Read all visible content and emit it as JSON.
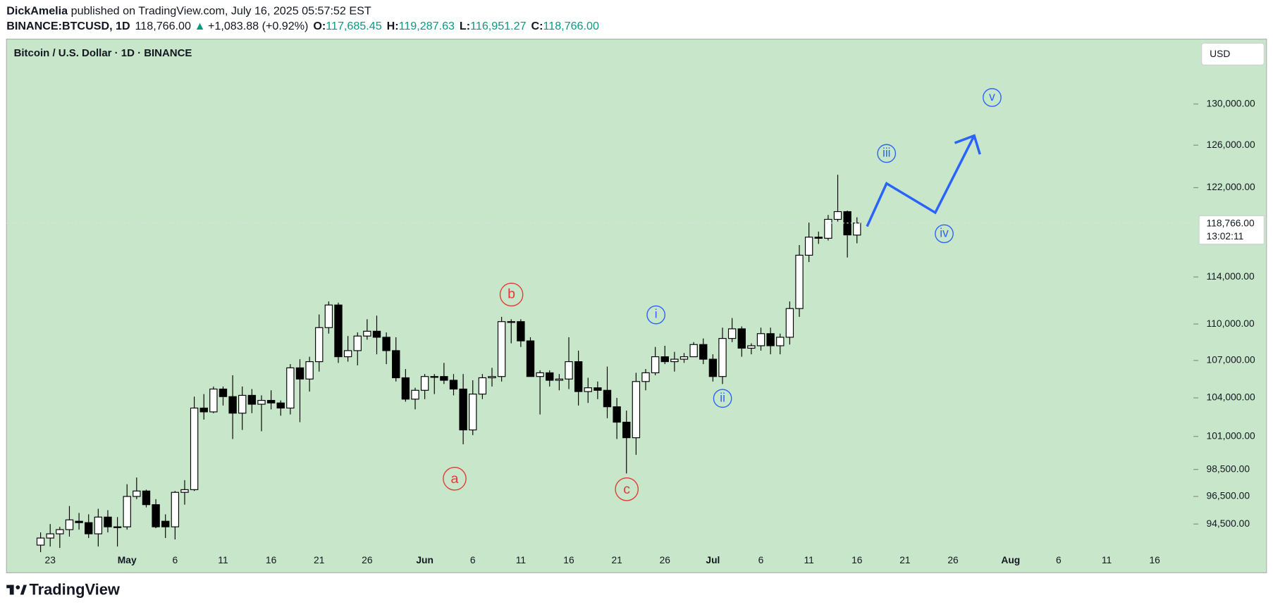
{
  "header": {
    "author": "DickAmelia",
    "published": "published on TradingView.com, July 16, 2025 05:57:52 EST",
    "symbol": "BINANCE:BTCUSD, 1D",
    "price": "118,766.00",
    "arrow": "▲",
    "change": "+1,083.88 (+0.92%)",
    "ohlc": [
      {
        "key": "O:",
        "value": "117,685.45"
      },
      {
        "key": "H:",
        "value": "119,287.63"
      },
      {
        "key": "L:",
        "value": "116,951.27"
      },
      {
        "key": "C:",
        "value": "118,766.00"
      }
    ]
  },
  "footer": {
    "brand": "TradingView"
  },
  "chart_data": {
    "type": "candlestick",
    "title": "Bitcoin / U.S. Dollar · 1D · BINANCE",
    "currency": "USD",
    "last_price_label": "118,766.00",
    "countdown": "13:02:11",
    "log": true,
    "up_color": "#ffffff",
    "down_color": "#000000",
    "wick_color": "#000000",
    "categories": [
      null,
      "23",
      null,
      null,
      null,
      null,
      null,
      null,
      null,
      "May",
      null,
      null,
      null,
      null,
      "6",
      null,
      null,
      null,
      null,
      "11",
      null,
      null,
      null,
      null,
      "16",
      null,
      null,
      null,
      null,
      "21",
      null,
      null,
      null,
      null,
      "26",
      null,
      null,
      null,
      null,
      null,
      "Jun",
      null,
      null,
      null,
      null,
      "6",
      null,
      null,
      null,
      null,
      "11",
      null,
      null,
      null,
      null,
      "16",
      null,
      null,
      null,
      null,
      "21",
      null,
      null,
      null,
      null,
      "26",
      null,
      null,
      null,
      null,
      "Jul",
      null,
      null,
      null,
      null,
      "6",
      null,
      null,
      null,
      null,
      "11",
      null,
      null,
      null,
      null,
      "16",
      null,
      null,
      null,
      null,
      "21",
      null,
      null,
      null,
      null,
      "26",
      null,
      null,
      null,
      null,
      null,
      "Aug",
      null,
      null,
      null,
      null,
      "6",
      null,
      null,
      null,
      null,
      "11",
      null,
      null,
      null,
      null,
      "16"
    ],
    "open": [
      93000,
      93500,
      93800,
      94100,
      94700,
      94600,
      93800,
      95000,
      94300,
      94300,
      96500,
      96900,
      95900,
      94700,
      94300,
      96800,
      97000,
      103200,
      102900,
      104700,
      104100,
      102800,
      104200,
      103500,
      103800,
      103600,
      103200,
      106400,
      105500,
      106900,
      109700,
      111600,
      107300,
      107800,
      109000,
      109400,
      108900,
      107800,
      105600,
      103900,
      104600,
      105700,
      105700,
      105400,
      104700,
      101500,
      104300,
      105600,
      105700,
      110200,
      110200,
      108600,
      105700,
      106000,
      105400,
      105500,
      106900,
      104500,
      104800,
      104600,
      103300,
      102100,
      100900,
      105300,
      106000,
      107300,
      106900,
      107100,
      107300,
      108300,
      107100,
      105700,
      108800,
      109600,
      108000,
      108200,
      109200,
      108200,
      108900,
      111300,
      115900,
      117500,
      117400,
      119100,
      119800,
      117685.45,
      null,
      null,
      null,
      null,
      null,
      null,
      null,
      null,
      null,
      null,
      null,
      null,
      null,
      null,
      null,
      null,
      null,
      null,
      null,
      null,
      null,
      null,
      null,
      null,
      null,
      null,
      null,
      null,
      null,
      null,
      null
    ],
    "high": [
      93900,
      94500,
      94300,
      95800,
      95300,
      95200,
      95600,
      95500,
      95000,
      97400,
      97900,
      97000,
      96300,
      95200,
      96900,
      97700,
      104100,
      104300,
      104900,
      104900,
      105800,
      104900,
      104700,
      104200,
      104600,
      103800,
      106700,
      107100,
      107300,
      110800,
      111900,
      111800,
      109000,
      109300,
      110400,
      110700,
      109300,
      108900,
      106300,
      104800,
      105900,
      105900,
      106800,
      105900,
      105900,
      105400,
      105900,
      106400,
      110600,
      110400,
      110400,
      108900,
      106200,
      106200,
      105900,
      108900,
      107800,
      105600,
      105300,
      106500,
      104000,
      103000,
      106000,
      106300,
      108100,
      108200,
      107700,
      107600,
      108500,
      108800,
      107500,
      109700,
      110500,
      109800,
      108400,
      109700,
      109700,
      109200,
      111900,
      116800,
      118800,
      118000,
      119500,
      123200,
      119900,
      119287.63,
      null,
      null,
      null,
      null,
      null,
      null,
      null,
      null,
      null,
      null,
      null,
      null,
      null,
      null,
      null,
      null,
      null,
      null,
      null,
      null,
      null,
      null,
      null,
      null,
      null,
      null,
      null,
      null,
      null,
      null,
      null
    ],
    "low": [
      92500,
      92900,
      92800,
      93600,
      94100,
      93500,
      92900,
      93900,
      92900,
      94100,
      96300,
      95700,
      94200,
      93500,
      93400,
      95900,
      96900,
      102300,
      102800,
      103400,
      100800,
      101500,
      102800,
      101400,
      103100,
      102600,
      102700,
      102100,
      104500,
      106100,
      109200,
      106800,
      106900,
      106600,
      108700,
      107500,
      106700,
      105300,
      103700,
      103100,
      103900,
      104300,
      105100,
      104200,
      100400,
      101100,
      103900,
      104900,
      105300,
      108400,
      108100,
      105700,
      102700,
      104900,
      104600,
      104700,
      103400,
      103600,
      103900,
      102400,
      100800,
      98200,
      99600,
      104600,
      105800,
      106700,
      106100,
      106800,
      107300,
      106700,
      105300,
      105100,
      108500,
      107300,
      107500,
      107800,
      107500,
      107500,
      108300,
      110600,
      115300,
      116900,
      117200,
      118900,
      115700,
      116951.27,
      null,
      null,
      null,
      null,
      null,
      null,
      null,
      null,
      null,
      null,
      null,
      null,
      null,
      null,
      null,
      null,
      null,
      null,
      null,
      null,
      null,
      null,
      null,
      null,
      null,
      null,
      null,
      null,
      null,
      null,
      null
    ],
    "close": [
      93500,
      93800,
      94100,
      94800,
      94600,
      93800,
      95000,
      94300,
      94300,
      96500,
      96900,
      95900,
      94300,
      94300,
      96800,
      97000,
      103200,
      102900,
      104700,
      104100,
      102800,
      104200,
      103500,
      103800,
      103600,
      103200,
      106400,
      105500,
      106900,
      109700,
      111600,
      107300,
      107800,
      109000,
      109400,
      108900,
      107800,
      105600,
      103900,
      104600,
      105700,
      105700,
      105400,
      104700,
      101500,
      104300,
      105600,
      105700,
      110200,
      110200,
      108600,
      105700,
      106000,
      105400,
      105500,
      106900,
      104500,
      104800,
      104600,
      103300,
      102100,
      100900,
      105300,
      106000,
      107300,
      106900,
      107100,
      107300,
      108300,
      107100,
      105700,
      108800,
      109600,
      108000,
      108200,
      109200,
      108200,
      108900,
      111300,
      115900,
      117500,
      117400,
      119100,
      119800,
      117700,
      118766,
      null,
      null,
      null,
      null,
      null,
      null,
      null,
      null,
      null,
      null,
      null,
      null,
      null,
      null,
      null,
      null,
      null,
      null,
      null,
      null,
      null,
      null,
      null,
      null,
      null,
      null,
      null,
      null,
      null,
      null,
      null
    ],
    "ylim": [
      92650,
      136570
    ],
    "yticks": [
      {
        "value": 94500,
        "label": "94,500.00"
      },
      {
        "value": 96500,
        "label": "96,500.00"
      },
      {
        "value": 98500,
        "label": "98,500.00"
      },
      {
        "value": 101000,
        "label": "101,000.00"
      },
      {
        "value": 104000,
        "label": "104,000.00"
      },
      {
        "value": 107000,
        "label": "107,000.00"
      },
      {
        "value": 110000,
        "label": "110,000.00"
      },
      {
        "value": 114000,
        "label": "114,000.00"
      },
      {
        "value": 122000,
        "label": "122,000.00"
      },
      {
        "value": 126000,
        "label": "126,000.00"
      },
      {
        "value": 130000,
        "label": "130,000.00"
      }
    ],
    "annotations": [
      "a",
      "b",
      "c",
      "i",
      "ii",
      "iii",
      "iv",
      "v"
    ]
  }
}
